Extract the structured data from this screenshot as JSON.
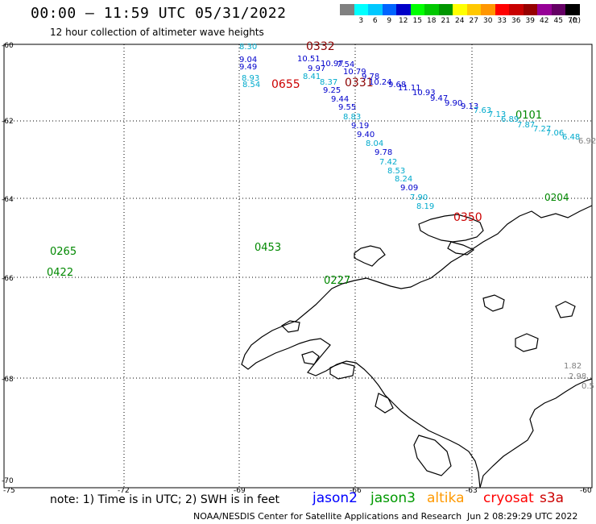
{
  "header": {
    "title": "00:00 – 11:59 UTC 05/31/2022",
    "subtitle": "12 hour collection of altimeter wave heights"
  },
  "scale": {
    "unit": "(ft)",
    "items": [
      {
        "label": "",
        "color": "#808080"
      },
      {
        "label": "3",
        "color": "#00ffff"
      },
      {
        "label": "6",
        "color": "#00c8ff"
      },
      {
        "label": "9",
        "color": "#0064ff"
      },
      {
        "label": "12",
        "color": "#0000c8"
      },
      {
        "label": "15",
        "color": "#00ff00"
      },
      {
        "label": "18",
        "color": "#00c800"
      },
      {
        "label": "21",
        "color": "#009600"
      },
      {
        "label": "24",
        "color": "#ffff00"
      },
      {
        "label": "27",
        "color": "#ffc800"
      },
      {
        "label": "30",
        "color": "#ff9600"
      },
      {
        "label": "33",
        "color": "#ff0000"
      },
      {
        "label": "36",
        "color": "#c80000"
      },
      {
        "label": "39",
        "color": "#960000"
      },
      {
        "label": "42",
        "color": "#960096"
      },
      {
        "label": "45",
        "color": "#640064"
      },
      {
        "label": "70",
        "color": "#000000"
      }
    ]
  },
  "axes": {
    "lat_ticks": [
      "-60",
      "-62",
      "-64",
      "-66",
      "-68",
      "-70"
    ],
    "lon_ticks": [
      "-75",
      "-72",
      "-69",
      "-66",
      "-63",
      "-60"
    ]
  },
  "track_labels": [
    {
      "text": "0332",
      "color": "#8b0000"
    },
    {
      "text": "0655",
      "color": "#cc0000"
    },
    {
      "text": "0331",
      "color": "#8b0000"
    },
    {
      "text": "0101",
      "color": "#008800"
    },
    {
      "text": "0350",
      "color": "#cc0000"
    },
    {
      "text": "0453",
      "color": "#008800"
    },
    {
      "text": "0265",
      "color": "#008800"
    },
    {
      "text": "0422",
      "color": "#008800"
    },
    {
      "text": "0227",
      "color": "#008800"
    },
    {
      "text": "0204",
      "color": "#008800"
    }
  ],
  "swh_values": [
    {
      "text": "8.30",
      "color": "#00aacc"
    },
    {
      "text": "9.04",
      "color": "#0000cc"
    },
    {
      "text": "9.49",
      "color": "#0000cc"
    },
    {
      "text": "8.93",
      "color": "#00aacc"
    },
    {
      "text": "8.54",
      "color": "#00aacc"
    },
    {
      "text": "10.51",
      "color": "#0000cc"
    },
    {
      "text": "9.97",
      "color": "#0000cc"
    },
    {
      "text": "10.97",
      "color": "#0000cc"
    },
    {
      "text": "7.54",
      "color": "#0000cc"
    },
    {
      "text": "8.41",
      "color": "#00aacc"
    },
    {
      "text": "8.37",
      "color": "#00aacc"
    },
    {
      "text": "10.79",
      "color": "#0000cc"
    },
    {
      "text": "9.25",
      "color": "#0000cc"
    },
    {
      "text": "9.78",
      "color": "#0000cc"
    },
    {
      "text": "10.24",
      "color": "#0000cc"
    },
    {
      "text": "9.68",
      "color": "#0000cc"
    },
    {
      "text": "9.44",
      "color": "#0000cc"
    },
    {
      "text": "11.11",
      "color": "#0000cc"
    },
    {
      "text": "10.93",
      "color": "#0000cc"
    },
    {
      "text": "9.55",
      "color": "#0000cc"
    },
    {
      "text": "9.47",
      "color": "#0000cc"
    },
    {
      "text": "9.90",
      "color": "#0000cc"
    },
    {
      "text": "8.83",
      "color": "#00aacc"
    },
    {
      "text": "9.13",
      "color": "#0000cc"
    },
    {
      "text": "7.63",
      "color": "#00aacc"
    },
    {
      "text": "9.19",
      "color": "#0000cc"
    },
    {
      "text": "7.13",
      "color": "#00aacc"
    },
    {
      "text": "6.89",
      "color": "#00aacc"
    },
    {
      "text": "9.40",
      "color": "#0000cc"
    },
    {
      "text": "7.87",
      "color": "#00aacc"
    },
    {
      "text": "7.27",
      "color": "#00aacc"
    },
    {
      "text": "8.04",
      "color": "#00aacc"
    },
    {
      "text": "7.06",
      "color": "#00aacc"
    },
    {
      "text": "6.48",
      "color": "#00aacc"
    },
    {
      "text": "9.78",
      "color": "#0000cc"
    },
    {
      "text": "6.92",
      "color": "#808080"
    },
    {
      "text": "7.42",
      "color": "#00aacc"
    },
    {
      "text": "8.53",
      "color": "#00aacc"
    },
    {
      "text": "8.24",
      "color": "#00aacc"
    },
    {
      "text": "9.09",
      "color": "#0000cc"
    },
    {
      "text": "7.90",
      "color": "#00aacc"
    },
    {
      "text": "8.19",
      "color": "#00aacc"
    },
    {
      "text": "1.82",
      "color": "#808080"
    },
    {
      "text": "2.98",
      "color": "#808080"
    },
    {
      "text": "0.5",
      "color": "#808080"
    }
  ],
  "footer": {
    "note": "note: 1) Time is in UTC; 2) SWH is in feet",
    "legend": [
      {
        "name": "jason2",
        "color": "#0000ff"
      },
      {
        "name": "jason3",
        "color": "#009900"
      },
      {
        "name": "altika",
        "color": "#ff9900"
      },
      {
        "name": "cryosat",
        "color": "#ff0000"
      },
      {
        "name": "s3a",
        "color": "#cc0000"
      }
    ],
    "credit": "NOAA/NESDIS Center for Satellite Applications and Research",
    "timestamp": "Jun  2 08:29:29 UTC 2022"
  }
}
